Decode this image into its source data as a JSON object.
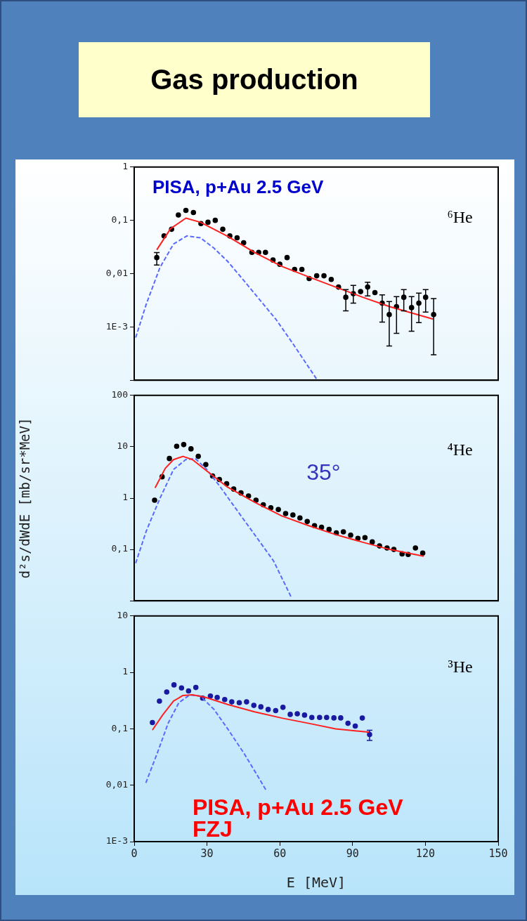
{
  "chart_data": [
    {
      "type": "scatter",
      "title": "Gas production",
      "annotations": [
        "PISA, p+Au 2.5 GeV",
        "⁶He"
      ],
      "xlim": [
        0,
        150
      ],
      "xticks": [
        0,
        30,
        60,
        90,
        120,
        150
      ],
      "ylim": [
        0.0001,
        1
      ],
      "yticks": [
        {
          "value": 1,
          "label": "1"
        },
        {
          "value": 0.1,
          "label": "0,1"
        },
        {
          "value": 0.01,
          "label": "0,01"
        },
        {
          "value": 0.001,
          "label": "1E-3"
        },
        {
          "value": 0.0001,
          "label": null
        }
      ],
      "log": "y",
      "grid": false,
      "legend": false,
      "tick_labels": "y",
      "series": [
        {
          "type": "scatter",
          "marker": "circle",
          "color": "#000000",
          "x": [
            9.3,
            12.3,
            15.4,
            18.2,
            21.3,
            24.4,
            27.5,
            30.4,
            33.4,
            36.5,
            39.4,
            42.4,
            45.1,
            48.5,
            51.3,
            54.1,
            57.2,
            60.0,
            63.0,
            66.1,
            69.1,
            72.1,
            75.2,
            78.2,
            81.2,
            84.2,
            87.2,
            90.3,
            93.3,
            96.2,
            99.2,
            102.2,
            105.1,
            108.1,
            111.1,
            114.3,
            117.3,
            120.1,
            123.4
          ],
          "values": [
            0.02,
            0.051,
            0.068,
            0.126,
            0.154,
            0.14,
            0.087,
            0.092,
            0.1,
            0.068,
            0.051,
            0.047,
            0.038,
            0.025,
            0.025,
            0.025,
            0.018,
            0.015,
            0.02,
            0.012,
            0.012,
            0.0081,
            0.0091,
            0.0091,
            0.0078,
            0.0056,
            0.0036,
            0.0042,
            0.0046,
            0.0056,
            0.0044,
            0.0028,
            0.0017,
            0.0024,
            0.0036,
            0.0023,
            0.0028,
            0.0036,
            0.0017
          ],
          "errors": [
            [
              0.0145,
              0.0248
            ],
            null,
            null,
            null,
            null,
            null,
            null,
            null,
            null,
            null,
            null,
            null,
            null,
            null,
            null,
            null,
            null,
            null,
            null,
            null,
            null,
            null,
            null,
            null,
            null,
            null,
            [
              0.002,
              0.005
            ],
            [
              0.0028,
              0.006
            ],
            null,
            [
              0.0038,
              0.0069
            ],
            null,
            [
              0.00123,
              0.004
            ],
            [
              0.00044,
              0.003
            ],
            [
              0.00076,
              0.0037
            ],
            [
              0.002,
              0.005
            ],
            [
              0.00083,
              0.0037
            ],
            [
              0.0012,
              0.0043
            ],
            [
              0.0019,
              0.005
            ],
            [
              0.0003,
              0.0034
            ]
          ]
        },
        {
          "type": "line",
          "marker": "none",
          "line_style": "solid",
          "color": "#ff2020",
          "x": [
            9.3,
            15,
            21.3,
            27.3,
            38.5,
            49.6,
            60.8,
            71.9,
            83,
            94.2,
            105.3,
            123.2
          ],
          "values": [
            0.028,
            0.07,
            0.11,
            0.092,
            0.05,
            0.025,
            0.0137,
            0.0087,
            0.0056,
            0.0036,
            0.0024,
            0.0014
          ]
        },
        {
          "type": "line",
          "marker": "none",
          "line_style": "dashed",
          "color": "#5a6aff",
          "x": [
            0.6,
            5.0,
            10.6,
            16.2,
            21.7,
            27.3,
            32.9,
            38.5,
            45.2,
            51.8,
            58.5,
            65.2,
            75.3
          ],
          "values": [
            0.00063,
            0.0027,
            0.013,
            0.036,
            0.051,
            0.047,
            0.03,
            0.017,
            0.0074,
            0.0032,
            0.00137,
            0.0005,
            0.000103
          ]
        }
      ]
    },
    {
      "type": "scatter",
      "ylabel": "d²s/dWdE [mb/sr*MeV]",
      "annotations": [
        "⁴He",
        "35°"
      ],
      "xlim": [
        0,
        150
      ],
      "xticks": [
        0,
        30,
        60,
        90,
        120,
        150
      ],
      "ylim": [
        0.01,
        100
      ],
      "yticks": [
        {
          "value": 100,
          "label": "100"
        },
        {
          "value": 10,
          "label": "10"
        },
        {
          "value": 1,
          "label": "1"
        },
        {
          "value": 0.1,
          "label": "0,1"
        },
        {
          "value": 0.01,
          "label": null
        }
      ],
      "log": "y",
      "grid": false,
      "legend": false,
      "tick_labels": "y",
      "series": [
        {
          "type": "scatter",
          "marker": "circle",
          "color": "#000000",
          "x": [
            8.4,
            11.5,
            14.5,
            17.5,
            20.4,
            23.4,
            26.4,
            29.5,
            32.3,
            35.1,
            38.1,
            41.0,
            44.0,
            47.1,
            50.2,
            53.2,
            56.3,
            59.4,
            62.4,
            65.4,
            68.3,
            71.3,
            74.3,
            77.2,
            80.3,
            83.3,
            86.2,
            89.2,
            92.2,
            95.1,
            98.1,
            101.1,
            104.2,
            107.0,
            110.4,
            112.9,
            115.9,
            118.9
          ],
          "values": [
            0.91,
            2.6,
            5.9,
            10.2,
            11,
            9.1,
            6.5,
            4.5,
            2.7,
            2.3,
            1.9,
            1.5,
            1.26,
            1.1,
            0.91,
            0.74,
            0.65,
            0.6,
            0.5,
            0.47,
            0.41,
            0.35,
            0.29,
            0.27,
            0.245,
            0.21,
            0.22,
            0.19,
            0.165,
            0.17,
            0.14,
            0.117,
            0.107,
            0.1,
            0.082,
            0.08,
            0.107,
            0.085
          ]
        },
        {
          "type": "line",
          "marker": "none",
          "line_style": "solid",
          "color": "#ff2020",
          "x": [
            8.6,
            12.8,
            16.2,
            20.1,
            24.0,
            29.5,
            38.5,
            49.6,
            60.8,
            71.9,
            83,
            94.2,
            105.3,
            119.3
          ],
          "values": [
            1.58,
            3.8,
            5.6,
            6.5,
            5.6,
            3.5,
            1.63,
            0.83,
            0.45,
            0.29,
            0.195,
            0.138,
            0.1,
            0.074
          ]
        },
        {
          "type": "line",
          "marker": "none",
          "line_style": "dashed",
          "color": "#5a6aff",
          "x": [
            0.6,
            5.0,
            10.6,
            16.2,
            21.2,
            25.1,
            29.5,
            35.1,
            41.8,
            49.6,
            57.4,
            64.7
          ],
          "values": [
            0.054,
            0.23,
            0.99,
            3.6,
            5.6,
            5.9,
            3.8,
            1.74,
            0.63,
            0.195,
            0.06,
            0.0118
          ]
        }
      ]
    },
    {
      "type": "scatter",
      "xlabel": "E [MeV]",
      "annotations": [
        "³He",
        "PISA, p+Au 2.5 GeV",
        "FZJ"
      ],
      "xlim": [
        0,
        150
      ],
      "xticks": [
        0,
        30,
        60,
        90,
        120,
        150
      ],
      "ylim": [
        0.001,
        10
      ],
      "yticks": [
        {
          "value": 10,
          "label": "10"
        },
        {
          "value": 1,
          "label": "1"
        },
        {
          "value": 0.1,
          "label": "0,1"
        },
        {
          "value": 0.01,
          "label": "0,01"
        },
        {
          "value": 0.001,
          "label": "1E-3"
        }
      ],
      "log": "y",
      "grid": false,
      "legend": false,
      "series": [
        {
          "type": "scatter",
          "marker": "circle",
          "color": "#1a1aa0",
          "x": [
            7.5,
            10.4,
            13.4,
            16.4,
            19.5,
            22.4,
            25.4,
            28.2,
            31.4,
            34.2,
            37.3,
            40.2,
            43.3,
            46.3,
            49.3,
            52.2,
            55.2,
            58.3,
            61.3,
            64.3,
            67.2,
            70.2,
            73.2,
            76.4,
            79.3,
            82.3,
            85.1,
            88.1,
            91.1,
            94.0,
            97.0
          ],
          "values": [
            0.129,
            0.31,
            0.45,
            0.6,
            0.53,
            0.47,
            0.54,
            0.35,
            0.38,
            0.36,
            0.33,
            0.3,
            0.29,
            0.3,
            0.26,
            0.245,
            0.22,
            0.21,
            0.24,
            0.18,
            0.185,
            0.175,
            0.159,
            0.159,
            0.159,
            0.156,
            0.156,
            0.125,
            0.112,
            0.155,
            0.079
          ],
          "errors": [
            null,
            null,
            null,
            null,
            null,
            null,
            null,
            null,
            null,
            null,
            null,
            null,
            null,
            null,
            null,
            null,
            null,
            null,
            null,
            null,
            null,
            null,
            null,
            null,
            null,
            null,
            null,
            null,
            null,
            null,
            [
              0.062,
              0.094
            ]
          ]
        },
        {
          "type": "line",
          "marker": "none",
          "line_style": "solid",
          "color": "#ff2020",
          "x": [
            7.5,
            11.7,
            16.2,
            20.1,
            24.0,
            29.5,
            38.5,
            49.6,
            60.8,
            71.9,
            83,
            97
          ],
          "values": [
            0.095,
            0.175,
            0.31,
            0.39,
            0.4,
            0.36,
            0.27,
            0.2,
            0.155,
            0.125,
            0.1,
            0.087
          ]
        },
        {
          "type": "line",
          "marker": "none",
          "line_style": "dashed",
          "color": "#5a6aff",
          "x": [
            4.8,
            9.5,
            14.0,
            18.4,
            22.9,
            27.3,
            32.9,
            38.5,
            45.2,
            50.7,
            54.6
          ],
          "values": [
            0.011,
            0.037,
            0.126,
            0.29,
            0.4,
            0.38,
            0.22,
            0.1,
            0.037,
            0.015,
            0.0078
          ]
        }
      ]
    }
  ]
}
